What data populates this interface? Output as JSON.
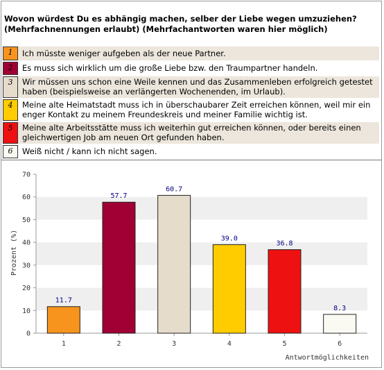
{
  "question": {
    "line1": "Wovon würdest Du es abhängig machen, selber der Liebe wegen umzuziehen?",
    "line2": "(Mehrfachnennungen erlaubt) (Mehrfachantworten waren hier möglich)"
  },
  "legend": [
    {
      "num": "1",
      "color": "#f7941d",
      "text": "Ich müsste weniger aufgeben als der neue Partner."
    },
    {
      "num": "2",
      "color": "#a10034",
      "text": "Es muss sich wirklich um die große Liebe bzw. den Traumpartner handeln."
    },
    {
      "num": "3",
      "color": "#e6dccb",
      "text": "Wir müssen uns schon eine Weile kennen und das Zusammenleben erfolgreich getestet haben (beispielsweise an verlängerten Wochenenden, im Urlaub)."
    },
    {
      "num": "4",
      "color": "#ffcc00",
      "text": "Meine alte Heimatstadt muss ich in überschaubarer Zeit erreichen können, weil mir ein enger Kontakt zu meinem Freundeskreis und meiner Familie wichtig ist."
    },
    {
      "num": "5",
      "color": "#ee1111",
      "text": "Meine alte Arbeitsstätte muss ich weiterhin gut erreichen können, oder bereits einen gleichwertigen Job am neuen Ort gefunden haben."
    },
    {
      "num": "6",
      "color": "#fafaf2",
      "text": "Weiß nicht / kann ich nicht sagen."
    }
  ],
  "chart_data": {
    "type": "bar",
    "categories": [
      "1",
      "2",
      "3",
      "4",
      "5",
      "6"
    ],
    "values": [
      11.7,
      57.7,
      60.7,
      39.0,
      36.8,
      8.3
    ],
    "value_labels": [
      "11.7",
      "57.7",
      "60.7",
      "39.0",
      "36.8",
      "8.3"
    ],
    "colors": [
      "#f7941d",
      "#a10034",
      "#e6dccb",
      "#ffcc00",
      "#ee1111",
      "#fafaf2"
    ],
    "ylabel": "Prozent (%)",
    "xlabel": "Antwortmöglichkeiten",
    "ylim": [
      0,
      70
    ],
    "yticks": [
      0,
      10,
      20,
      30,
      40,
      50,
      60,
      70
    ],
    "grid": "alternating horizontal bands",
    "label_color": "#000080"
  }
}
